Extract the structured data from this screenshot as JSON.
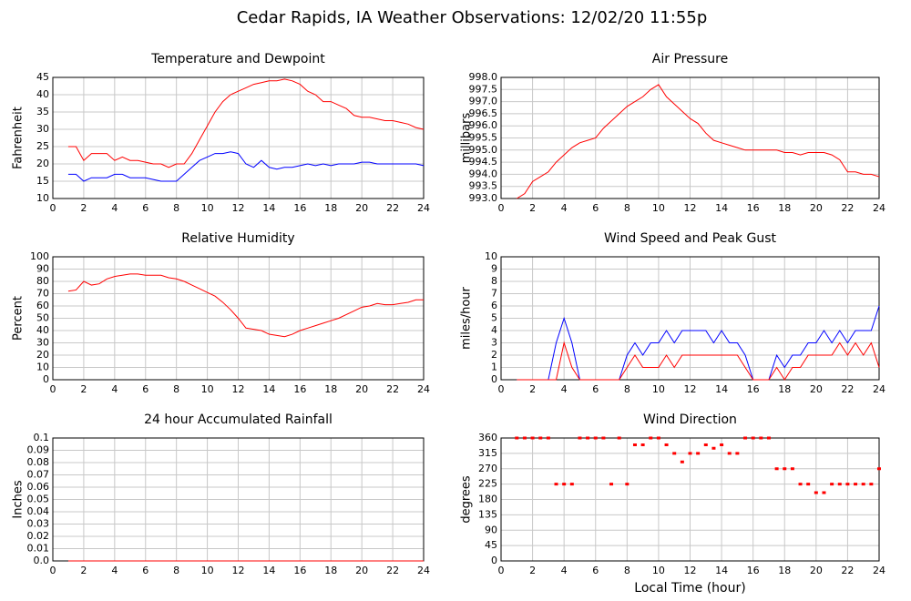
{
  "title": "Cedar Rapids, IA Weather Observations: 12/02/20 11:55p",
  "chart_data": [
    {
      "type": "line",
      "title": "Temperature and Dewpoint",
      "ylabel": "Fahrenheit",
      "x": [
        1,
        1.5,
        2,
        2.5,
        3,
        3.5,
        4,
        4.5,
        5,
        5.5,
        6,
        6.5,
        7,
        7.5,
        8,
        8.5,
        9,
        9.5,
        10,
        10.5,
        11,
        11.5,
        12,
        12.5,
        13,
        13.5,
        14,
        14.5,
        15,
        15.5,
        16,
        16.5,
        17,
        17.5,
        18,
        18.5,
        19,
        19.5,
        20,
        20.5,
        21,
        21.5,
        22,
        22.5,
        23,
        23.5,
        24
      ],
      "series": [
        {
          "color": "#ff0000",
          "values": [
            25,
            25,
            21,
            23,
            23,
            23,
            21,
            22,
            21,
            21,
            20.5,
            20,
            20,
            19,
            20,
            20,
            23,
            27,
            31,
            35,
            38,
            40,
            41,
            42,
            43,
            43.5,
            44,
            44,
            44.5,
            44,
            43,
            41,
            40,
            38,
            38,
            37,
            36,
            34,
            33.5,
            33.5,
            33,
            32.5,
            32.5,
            32,
            31.5,
            30.5,
            30
          ]
        },
        {
          "color": "#0000ff",
          "values": [
            17,
            17,
            15,
            16,
            16,
            16,
            17,
            17,
            16,
            16,
            16,
            15.5,
            15,
            15,
            15,
            17,
            19,
            21,
            22,
            23,
            23,
            23.5,
            23,
            20,
            19,
            21,
            19,
            18.5,
            19,
            19,
            19.5,
            20,
            19.5,
            20,
            19.5,
            20,
            20,
            20,
            20.5,
            20.5,
            20,
            20,
            20,
            20,
            20,
            20,
            19.5
          ]
        }
      ],
      "xlim": [
        0,
        24
      ],
      "xticks": [
        0,
        2,
        4,
        6,
        8,
        10,
        12,
        14,
        16,
        18,
        20,
        22,
        24
      ],
      "ylim": [
        10,
        45
      ],
      "yticks": [
        10,
        15,
        20,
        25,
        30,
        35,
        40,
        45
      ],
      "grid": true
    },
    {
      "type": "line",
      "title": "Air Pressure",
      "ylabel": "millibars",
      "x": [
        1,
        1.5,
        2,
        2.5,
        3,
        3.5,
        4,
        4.5,
        5,
        5.5,
        6,
        6.5,
        7,
        7.5,
        8,
        8.5,
        9,
        9.5,
        10,
        10.5,
        11,
        11.5,
        12,
        12.5,
        13,
        13.5,
        14,
        14.5,
        15,
        15.5,
        16,
        16.5,
        17,
        17.5,
        18,
        18.5,
        19,
        19.5,
        20,
        20.5,
        21,
        21.5,
        22,
        22.5,
        23,
        23.5,
        24
      ],
      "series": [
        {
          "color": "#ff0000",
          "values": [
            993.0,
            993.2,
            993.7,
            993.9,
            994.1,
            994.5,
            994.8,
            995.1,
            995.3,
            995.4,
            995.5,
            995.9,
            996.2,
            996.5,
            996.8,
            997.0,
            997.2,
            997.5,
            997.7,
            997.2,
            996.9,
            996.6,
            996.3,
            996.1,
            995.7,
            995.4,
            995.3,
            995.2,
            995.1,
            995.0,
            995.0,
            995.0,
            995.0,
            995.0,
            994.9,
            994.9,
            994.8,
            994.9,
            994.9,
            994.9,
            994.8,
            994.6,
            994.1,
            994.1,
            994.0,
            994.0,
            993.9
          ]
        }
      ],
      "xlim": [
        0,
        24
      ],
      "xticks": [
        0,
        2,
        4,
        6,
        8,
        10,
        12,
        14,
        16,
        18,
        20,
        22,
        24
      ],
      "ylim": [
        993,
        998
      ],
      "yticks": [
        {
          "value": 993,
          "label": "993.0"
        },
        {
          "value": 993.5,
          "label": "993.5"
        },
        {
          "value": 994,
          "label": "994.0"
        },
        {
          "value": 994.5,
          "label": "994.5"
        },
        {
          "value": 995,
          "label": "995.0"
        },
        {
          "value": 995.5,
          "label": "995.5"
        },
        {
          "value": 996,
          "label": "996.0"
        },
        {
          "value": 996.5,
          "label": "996.5"
        },
        {
          "value": 997,
          "label": "997.0"
        },
        {
          "value": 997.5,
          "label": "997.5"
        },
        {
          "value": 998,
          "label": "998.0"
        }
      ],
      "grid": true
    },
    {
      "type": "line",
      "title": "Relative Humidity",
      "ylabel": "Percent",
      "x": [
        1,
        1.5,
        2,
        2.5,
        3,
        3.5,
        4,
        4.5,
        5,
        5.5,
        6,
        6.5,
        7,
        7.5,
        8,
        8.5,
        9,
        9.5,
        10,
        10.5,
        11,
        11.5,
        12,
        12.5,
        13,
        13.5,
        14,
        14.5,
        15,
        15.5,
        16,
        16.5,
        17,
        17.5,
        18,
        18.5,
        19,
        19.5,
        20,
        20.5,
        21,
        21.5,
        22,
        22.5,
        23,
        23.5,
        24
      ],
      "series": [
        {
          "color": "#ff0000",
          "values": [
            72,
            73,
            80,
            77,
            78,
            82,
            84,
            85,
            86,
            86,
            85,
            85,
            85,
            83,
            82,
            80,
            77,
            74,
            71,
            68,
            63,
            57,
            50,
            42,
            41,
            40,
            37,
            36,
            35,
            37,
            40,
            42,
            44,
            46,
            48,
            50,
            53,
            56,
            59,
            60,
            62,
            61,
            61,
            62,
            63,
            65,
            65
          ]
        }
      ],
      "xlim": [
        0,
        24
      ],
      "xticks": [
        0,
        2,
        4,
        6,
        8,
        10,
        12,
        14,
        16,
        18,
        20,
        22,
        24
      ],
      "ylim": [
        0,
        100
      ],
      "yticks": [
        0,
        10,
        20,
        30,
        40,
        50,
        60,
        70,
        80,
        90,
        100
      ],
      "grid": true
    },
    {
      "type": "line",
      "title": "Wind Speed and Peak Gust",
      "ylabel": "miles/hour",
      "x": [
        1,
        1.5,
        2,
        2.5,
        3,
        3.5,
        4,
        4.5,
        5,
        5.5,
        6,
        6.5,
        7,
        7.5,
        8,
        8.5,
        9,
        9.5,
        10,
        10.5,
        11,
        11.5,
        12,
        12.5,
        13,
        13.5,
        14,
        14.5,
        15,
        15.5,
        16,
        16.5,
        17,
        17.5,
        18,
        18.5,
        19,
        19.5,
        20,
        20.5,
        21,
        21.5,
        22,
        22.5,
        23,
        23.5,
        24
      ],
      "series": [
        {
          "color": "#0000ff",
          "values": [
            0,
            0,
            0,
            0,
            0,
            3,
            5,
            3,
            0,
            0,
            0,
            0,
            0,
            0,
            2,
            3,
            2,
            3,
            3,
            4,
            3,
            4,
            4,
            4,
            4,
            3,
            4,
            3,
            3,
            2,
            0,
            0,
            0,
            2,
            1,
            2,
            2,
            3,
            3,
            4,
            3,
            4,
            3,
            4,
            4,
            4,
            6
          ]
        },
        {
          "color": "#ff0000",
          "values": [
            0,
            0,
            0,
            0,
            0,
            0,
            3,
            1,
            0,
            0,
            0,
            0,
            0,
            0,
            1,
            2,
            1,
            1,
            1,
            2,
            1,
            2,
            2,
            2,
            2,
            2,
            2,
            2,
            2,
            1,
            0,
            0,
            0,
            1,
            0,
            1,
            1,
            2,
            2,
            2,
            2,
            3,
            2,
            3,
            2,
            3,
            1
          ]
        }
      ],
      "xlim": [
        0,
        24
      ],
      "xticks": [
        0,
        2,
        4,
        6,
        8,
        10,
        12,
        14,
        16,
        18,
        20,
        22,
        24
      ],
      "ylim": [
        0,
        10
      ],
      "yticks": [
        0,
        1,
        2,
        3,
        4,
        5,
        6,
        7,
        8,
        9,
        10
      ],
      "grid": true
    },
    {
      "type": "line",
      "title": "24 hour Accumulated Rainfall",
      "ylabel": "Inches",
      "x": [
        1,
        24
      ],
      "series": [
        {
          "color": "#ff0000",
          "values": [
            0,
            0
          ]
        }
      ],
      "xlim": [
        0,
        24
      ],
      "xticks": [
        0,
        2,
        4,
        6,
        8,
        10,
        12,
        14,
        16,
        18,
        20,
        22,
        24
      ],
      "ylim": [
        0,
        0.1
      ],
      "yticks": [
        {
          "value": 0,
          "label": "0.0"
        },
        0.01,
        0.02,
        0.03,
        0.04,
        0.05,
        0.06,
        0.07,
        0.08,
        0.09,
        0.1
      ],
      "grid": true
    },
    {
      "type": "scatter",
      "title": "Wind Direction",
      "ylabel": "degrees",
      "xlabel": "Local Time (hour)",
      "x": [
        1,
        1.5,
        2,
        2.5,
        3,
        3.5,
        4,
        4.5,
        5,
        5.5,
        6,
        6.5,
        7,
        7.5,
        8,
        8.5,
        9,
        9.5,
        10,
        10.5,
        11,
        11.5,
        12,
        12.5,
        13,
        13.5,
        14,
        14.5,
        15,
        15.5,
        16,
        16.5,
        17,
        17.5,
        18,
        18.5,
        19,
        19.5,
        20,
        20.5,
        21,
        21.5,
        22,
        22.5,
        23,
        23.5,
        24
      ],
      "series": [
        {
          "color": "#ff0000",
          "values": [
            360,
            360,
            360,
            360,
            360,
            225,
            225,
            225,
            360,
            360,
            360,
            360,
            225,
            360,
            225,
            340,
            340,
            360,
            360,
            340,
            315,
            290,
            315,
            315,
            340,
            330,
            340,
            315,
            315,
            360,
            360,
            360,
            360,
            270,
            270,
            270,
            225,
            225,
            200,
            200,
            225,
            225,
            225,
            225,
            225,
            225,
            270
          ]
        }
      ],
      "xlim": [
        0,
        24
      ],
      "xticks": [
        0,
        2,
        4,
        6,
        8,
        10,
        12,
        14,
        16,
        18,
        20,
        22,
        24
      ],
      "ylim": [
        0,
        360
      ],
      "yticks": [
        0,
        45,
        90,
        135,
        180,
        225,
        270,
        315,
        360
      ],
      "grid": true
    }
  ]
}
